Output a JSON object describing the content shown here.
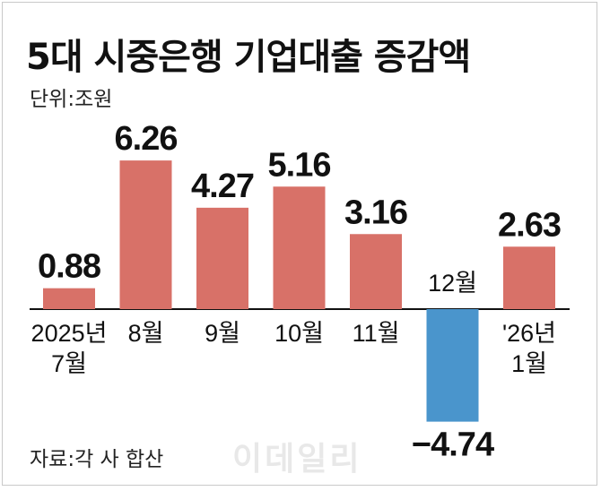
{
  "title": "5대 시중은행 기업대출 증감액",
  "unit_label": "단위:조원",
  "source_label": "자료:각 사 합산",
  "watermark": "이데일리",
  "colors": {
    "positive": "#d87168",
    "negative": "#4a95cc"
  },
  "chart_data": {
    "type": "bar",
    "categories": [
      [
        "2025년",
        "7월"
      ],
      [
        "8월"
      ],
      [
        "9월"
      ],
      [
        "10월"
      ],
      [
        "11월"
      ],
      [
        "12월"
      ],
      [
        "'26년",
        "1월"
      ]
    ],
    "values": [
      0.88,
      6.26,
      4.27,
      5.16,
      3.16,
      -4.74,
      2.63
    ],
    "value_labels": [
      "0.88",
      "6.26",
      "4.27",
      "5.16",
      "3.16",
      "−4.74",
      "2.63"
    ],
    "title": "5대 시중은행 기업대출 증감액",
    "unit": "단위:조원",
    "grid": false,
    "legend": "none"
  }
}
